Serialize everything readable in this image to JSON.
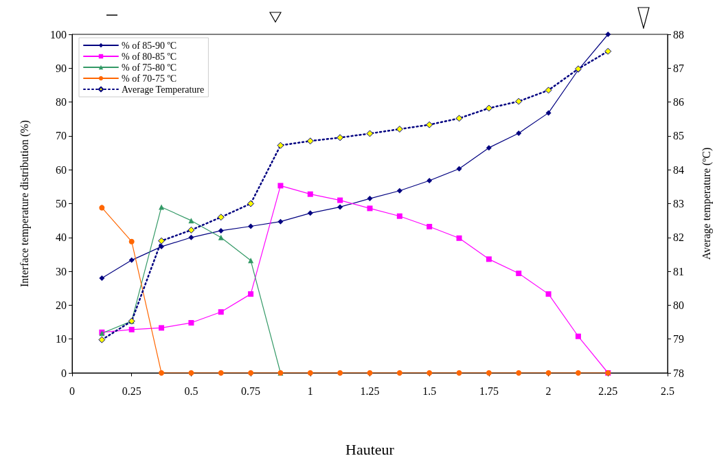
{
  "chart_data": {
    "type": "line",
    "xlabel": "Hauteur",
    "ylabel": "Interface temperature distribution (%)",
    "y2label": "Average temperature (ºC)",
    "x": [
      0.125,
      0.25,
      0.375,
      0.5,
      0.625,
      0.75,
      0.875,
      1,
      1.125,
      1.25,
      1.375,
      1.5,
      1.625,
      1.75,
      1.875,
      2,
      2.125,
      2.25
    ],
    "series": [
      {
        "name": "% of 85-90 ºC",
        "color": "#000080",
        "marker": "diamond",
        "line_style": "solid",
        "values": [
          28,
          33.3,
          37.3,
          40,
          42,
          43.3,
          44.7,
          47.2,
          49,
          51.5,
          53.8,
          56.8,
          60.3,
          66.5,
          70.8,
          76.8,
          89.5,
          100
        ]
      },
      {
        "name": "% of 80-85 ºC",
        "color": "#ff00ff",
        "marker": "square",
        "line_style": "solid",
        "values": [
          12,
          12.8,
          13.3,
          14.8,
          18,
          23.3,
          55.3,
          52.8,
          51,
          48.6,
          46.3,
          43.2,
          39.8,
          33.6,
          29.4,
          23.3,
          10.8,
          0
        ]
      },
      {
        "name": "% of 75-80 ºC",
        "color": "#339966",
        "marker": "triangle",
        "line_style": "solid",
        "values": [
          11.7,
          15.3,
          49,
          45,
          40,
          33.2,
          0,
          null,
          null,
          null,
          null,
          null,
          null,
          null,
          null,
          null,
          null,
          null
        ]
      },
      {
        "name": "% of 70-75 ºC",
        "color": "#ff6600",
        "marker": "circle",
        "line_style": "solid",
        "values": [
          48.8,
          38.8,
          0,
          0,
          0,
          0,
          0,
          0,
          0,
          0,
          0,
          0,
          0,
          0,
          0,
          0,
          0,
          0
        ]
      },
      {
        "name": "Average Temperature",
        "color": "#000080",
        "colors": [
          "#ffff00",
          "#ffff00",
          "#ffff00",
          "#ffff00",
          "#ffff00",
          "#ffff00",
          "#ffff00",
          "#ffff00",
          "#ffff00",
          "#ffff00",
          "#ffff00",
          "#ffff00",
          "#ffff00",
          "#ffff00",
          "#ffff00",
          "#ffff00",
          "#ffff00",
          "#ffff00"
        ],
        "marker": "diamond",
        "line_style": "dotted",
        "axis": "y2",
        "values": [
          78.98,
          79.53,
          81.9,
          82.22,
          82.6,
          83.0,
          84.72,
          84.85,
          84.95,
          85.07,
          85.2,
          85.33,
          85.52,
          85.82,
          86.02,
          86.35,
          86.98,
          87.5
        ]
      }
    ],
    "xlim": [
      0,
      2.5
    ],
    "xticks": [
      0,
      0.25,
      0.5,
      0.75,
      1,
      1.25,
      1.5,
      1.75,
      2,
      2.25,
      2.5
    ],
    "ylim": [
      0,
      100
    ],
    "yticks": [
      0,
      10,
      20,
      30,
      40,
      50,
      60,
      70,
      80,
      90,
      100
    ],
    "y2lim": [
      78,
      88
    ],
    "y2ticks": [
      78,
      79,
      80,
      81,
      82,
      83,
      84,
      85,
      86,
      87,
      88
    ],
    "grid": false,
    "legend": "top left"
  }
}
